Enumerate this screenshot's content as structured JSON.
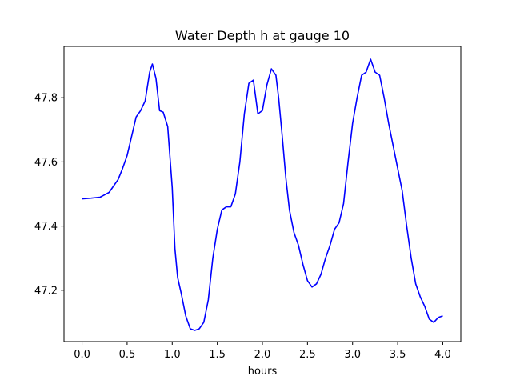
{
  "chart_data": {
    "type": "line",
    "title": "Water Depth h at gauge 10",
    "xlabel": "hours",
    "ylabel": "",
    "xlim": [
      -0.2,
      4.2
    ],
    "ylim": [
      47.04,
      47.96
    ],
    "xticks": [
      0.0,
      0.5,
      1.0,
      1.5,
      2.0,
      2.5,
      3.0,
      3.5,
      4.0
    ],
    "xtick_labels": [
      "0.0",
      "0.5",
      "1.0",
      "1.5",
      "2.0",
      "2.5",
      "3.0",
      "3.5",
      "4.0"
    ],
    "yticks": [
      47.2,
      47.4,
      47.6,
      47.8
    ],
    "ytick_labels": [
      "47.2",
      "47.4",
      "47.6",
      "47.8"
    ],
    "grid": false,
    "series": [
      {
        "color": "#0000ff",
        "x": [
          0.0,
          0.1,
          0.2,
          0.3,
          0.4,
          0.45,
          0.5,
          0.55,
          0.6,
          0.65,
          0.7,
          0.75,
          0.78,
          0.82,
          0.86,
          0.9,
          0.95,
          1.0,
          1.03,
          1.06,
          1.1,
          1.15,
          1.2,
          1.25,
          1.3,
          1.35,
          1.4,
          1.45,
          1.5,
          1.55,
          1.6,
          1.65,
          1.7,
          1.75,
          1.8,
          1.85,
          1.9,
          1.95,
          2.0,
          2.05,
          2.1,
          2.15,
          2.18,
          2.22,
          2.26,
          2.3,
          2.35,
          2.4,
          2.45,
          2.5,
          2.55,
          2.6,
          2.65,
          2.7,
          2.75,
          2.8,
          2.85,
          2.9,
          2.95,
          3.0,
          3.05,
          3.1,
          3.15,
          3.2,
          3.25,
          3.3,
          3.35,
          3.4,
          3.45,
          3.5,
          3.55,
          3.6,
          3.65,
          3.7,
          3.75,
          3.8,
          3.85,
          3.9,
          3.95,
          4.0
        ],
        "y": [
          47.485,
          47.487,
          47.49,
          47.505,
          47.545,
          47.58,
          47.62,
          47.68,
          47.74,
          47.76,
          47.79,
          47.88,
          47.905,
          47.86,
          47.76,
          47.755,
          47.71,
          47.52,
          47.33,
          47.24,
          47.19,
          47.12,
          47.08,
          47.075,
          47.08,
          47.1,
          47.17,
          47.3,
          47.39,
          47.45,
          47.46,
          47.46,
          47.5,
          47.6,
          47.75,
          47.845,
          47.855,
          47.75,
          47.76,
          47.84,
          47.89,
          47.87,
          47.8,
          47.68,
          47.55,
          47.45,
          47.38,
          47.34,
          47.28,
          47.23,
          47.21,
          47.22,
          47.25,
          47.3,
          47.34,
          47.39,
          47.41,
          47.47,
          47.6,
          47.72,
          47.8,
          47.87,
          47.88,
          47.92,
          47.88,
          47.87,
          47.8,
          47.72,
          47.65,
          47.58,
          47.51,
          47.4,
          47.3,
          47.22,
          47.18,
          47.15,
          47.11,
          47.1,
          47.115,
          47.12
        ]
      }
    ]
  }
}
